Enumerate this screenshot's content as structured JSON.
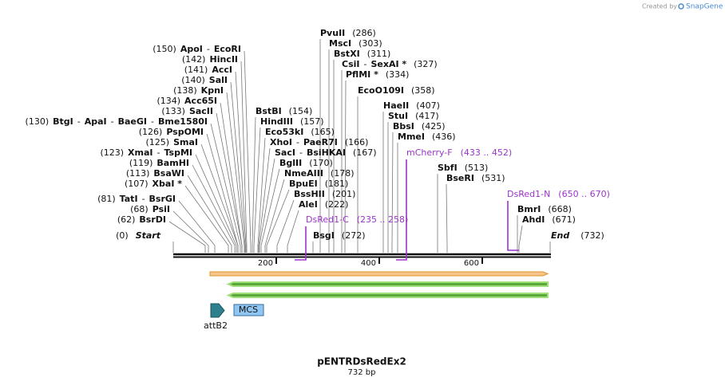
{
  "header": {
    "created_by": "Created by",
    "brand": "SnapGene"
  },
  "map": {
    "sites_left": [
      {
        "parts": [
          "(150)",
          "ApoI",
          "-",
          "EcoRI"
        ]
      },
      {
        "parts": [
          "(142)",
          "HincII"
        ]
      },
      {
        "parts": [
          "(141)",
          "AccI"
        ]
      },
      {
        "parts": [
          "(140)",
          "SalI"
        ]
      },
      {
        "parts": [
          "(138)",
          "KpnI"
        ]
      },
      {
        "parts": [
          "(134)",
          "Acc65I"
        ]
      },
      {
        "parts": [
          "(133)",
          "SacII"
        ]
      },
      {
        "parts": [
          "(130)",
          "BtgI",
          "-",
          "ApaI",
          "-",
          "BaeGI",
          "-",
          "Bme1580I"
        ]
      },
      {
        "parts": [
          "(126)",
          "PspOMI"
        ]
      },
      {
        "parts": [
          "(125)",
          "SmaI"
        ]
      },
      {
        "parts": [
          "(123)",
          "XmaI",
          "-",
          "TspMI"
        ]
      },
      {
        "parts": [
          "(119)",
          "BamHI"
        ]
      },
      {
        "parts": [
          "(113)",
          "BsaWI"
        ]
      },
      {
        "parts": [
          "(107)",
          "XbaI *"
        ]
      },
      {
        "parts": [
          "(81)",
          "TatI",
          "-",
          "BsrGI"
        ]
      },
      {
        "parts": [
          "(68)",
          "PsiI"
        ]
      },
      {
        "parts": [
          "(62)",
          "BsrDI"
        ]
      }
    ],
    "sites_middle": [
      {
        "parts": [
          "PvuII",
          "(286)"
        ]
      },
      {
        "parts": [
          "MscI",
          "(303)"
        ]
      },
      {
        "parts": [
          "BstXI",
          "(311)"
        ]
      },
      {
        "parts": [
          "CsiI",
          "-",
          "SexAI *",
          "(327)"
        ]
      },
      {
        "parts": [
          "PflMI *",
          "(334)"
        ]
      },
      {
        "parts": [
          "EcoO109I",
          "(358)"
        ]
      },
      {
        "parts": [
          "BstBI",
          "(154)"
        ]
      },
      {
        "parts": [
          "HindIII",
          "(157)"
        ]
      },
      {
        "parts": [
          "Eco53kI",
          "(165)"
        ]
      },
      {
        "parts": [
          "XhoI",
          "-",
          "PaeR7I",
          "(166)"
        ]
      },
      {
        "parts": [
          "SacI",
          "-",
          "BsiHKAI",
          "(167)"
        ]
      },
      {
        "parts": [
          "BglII",
          "(170)"
        ]
      },
      {
        "parts": [
          "NmeAIII",
          "(178)"
        ]
      },
      {
        "parts": [
          "BpuEI",
          "(181)"
        ]
      },
      {
        "parts": [
          "BssHII",
          "(201)"
        ]
      },
      {
        "parts": [
          "AleI",
          "(222)"
        ]
      },
      {
        "parts": [
          "BsgI",
          "(272)"
        ]
      }
    ],
    "sites_right": [
      {
        "parts": [
          "HaeII",
          "(407)"
        ]
      },
      {
        "parts": [
          "StuI",
          "(417)"
        ]
      },
      {
        "parts": [
          "BbsI",
          "(425)"
        ]
      },
      {
        "parts": [
          "MmeI",
          "(436)"
        ]
      },
      {
        "parts": [
          "SbfI",
          "(513)"
        ]
      },
      {
        "parts": [
          "BseRI",
          "(531)"
        ]
      },
      {
        "parts": [
          "BmrI",
          "(668)"
        ]
      },
      {
        "parts": [
          "AhdI",
          "(671)"
        ]
      }
    ],
    "primers": [
      {
        "name": "DsRed1-C",
        "range": "(235 .. 258)"
      },
      {
        "name": "mCherry-F",
        "range": "(433 .. 452)"
      },
      {
        "name": "DsRed1-N",
        "range": "(650 .. 670)"
      }
    ],
    "ends": {
      "start": {
        "position": "(0)",
        "label": "Start"
      },
      "end": {
        "label": "End",
        "position": "(732)"
      }
    },
    "ruler": [
      200,
      400,
      600
    ],
    "features": [
      {
        "name": "attB2"
      },
      {
        "name": "MCS"
      }
    ],
    "title": "pENTRDsRedEx2",
    "length": "732 bp"
  }
}
